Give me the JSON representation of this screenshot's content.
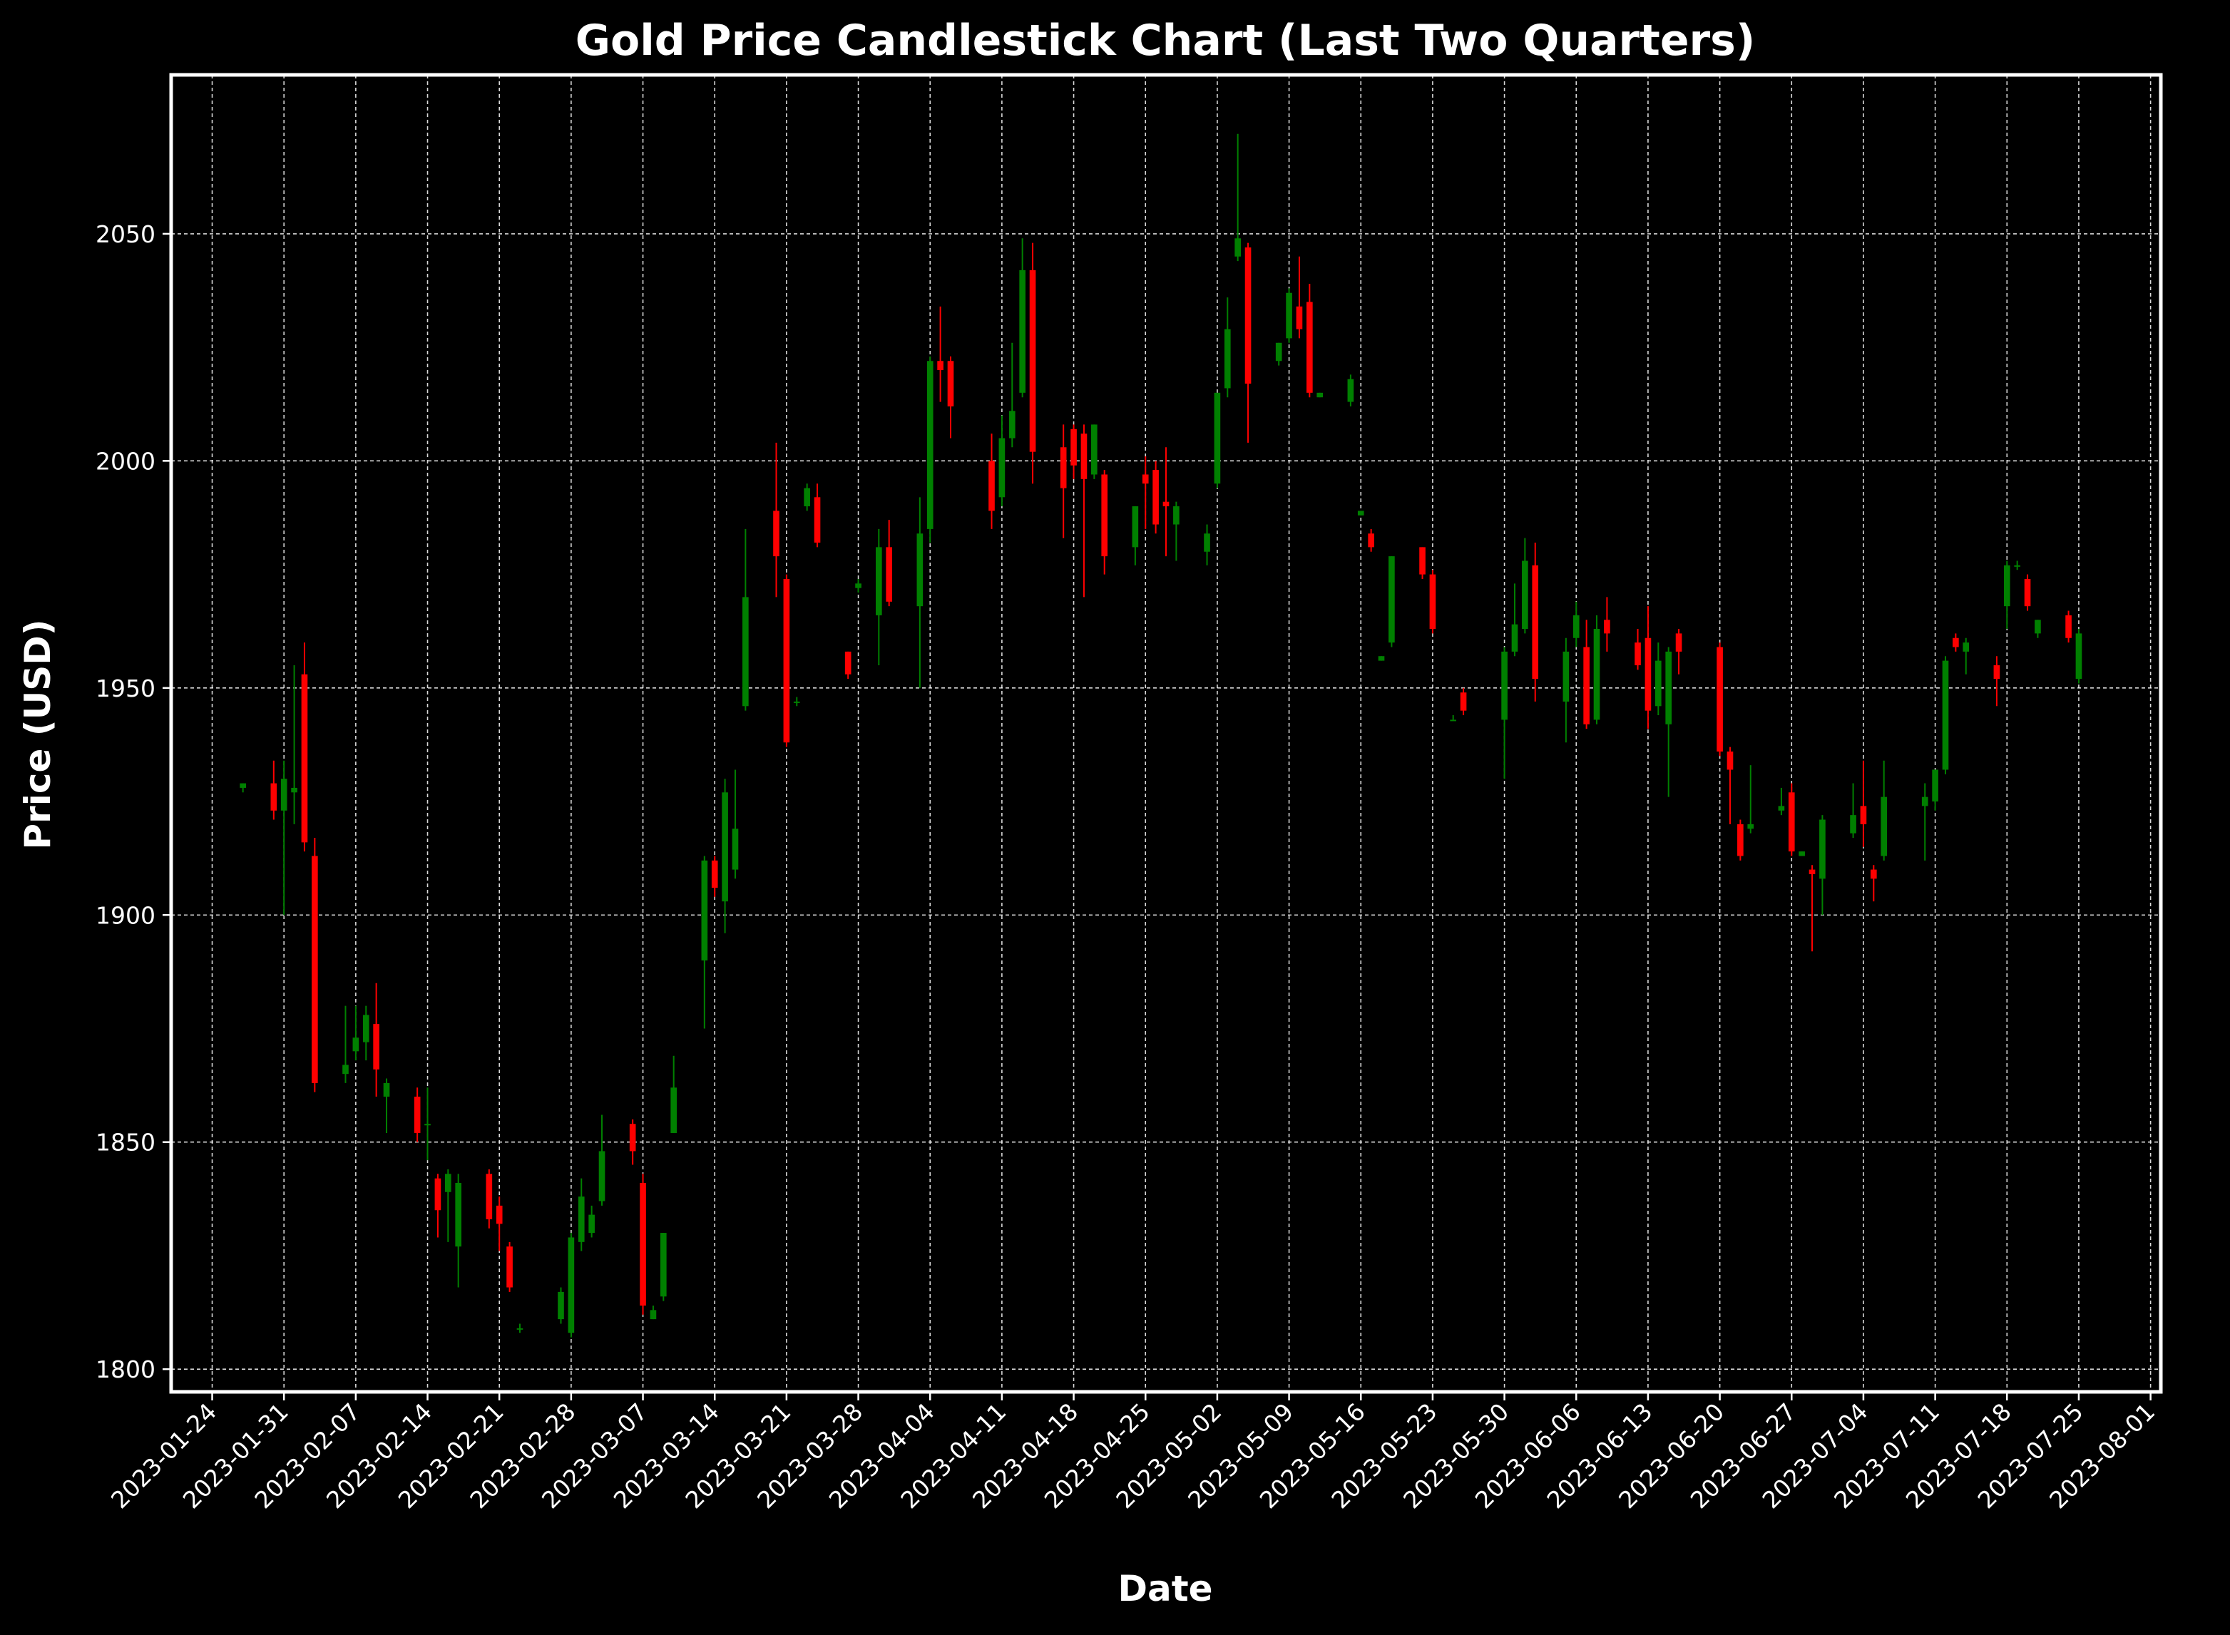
{
  "title": "Gold Price Candlestick Chart (Last Two Quarters)",
  "chart_data": {
    "type": "candlestick",
    "title": "Gold Price Candlestick Chart (Last Two Quarters)",
    "xlabel": "Date",
    "ylabel": "Price (USD)",
    "xlim": [
      "2023-01-20",
      "2023-08-02"
    ],
    "ylim": [
      1795,
      2085
    ],
    "x_ticks": [
      "2023-01-24",
      "2023-01-31",
      "2023-02-07",
      "2023-02-14",
      "2023-02-21",
      "2023-02-28",
      "2023-03-07",
      "2023-03-14",
      "2023-03-21",
      "2023-03-28",
      "2023-04-04",
      "2023-04-11",
      "2023-04-18",
      "2023-04-25",
      "2023-05-02",
      "2023-05-09",
      "2023-05-16",
      "2023-05-23",
      "2023-05-30",
      "2023-06-06",
      "2023-06-13",
      "2023-06-20",
      "2023-06-27",
      "2023-07-04",
      "2023-07-11",
      "2023-07-18",
      "2023-07-25",
      "2023-08-01"
    ],
    "y_ticks": [
      1800,
      1850,
      1900,
      1950,
      2000,
      2050
    ],
    "grid": true,
    "legend": "none",
    "colors": {
      "up": "#008000",
      "down": "#ff0000",
      "background": "#000000",
      "text": "#ffffff"
    },
    "candles": [
      {
        "date": "2023-01-27",
        "open": 1928,
        "high": 1929,
        "low": 1927,
        "close": 1929
      },
      {
        "date": "2023-01-30",
        "open": 1929,
        "high": 1934,
        "low": 1921,
        "close": 1923
      },
      {
        "date": "2023-01-31",
        "open": 1923,
        "high": 1934,
        "low": 1900,
        "close": 1930
      },
      {
        "date": "2023-02-01",
        "open": 1927,
        "high": 1955,
        "low": 1920,
        "close": 1928
      },
      {
        "date": "2023-02-02",
        "open": 1953,
        "high": 1960,
        "low": 1914,
        "close": 1916
      },
      {
        "date": "2023-02-03",
        "open": 1913,
        "high": 1917,
        "low": 1861,
        "close": 1863
      },
      {
        "date": "2023-02-06",
        "open": 1865,
        "high": 1880,
        "low": 1863,
        "close": 1867
      },
      {
        "date": "2023-02-07",
        "open": 1870,
        "high": 1880,
        "low": 1868,
        "close": 1873
      },
      {
        "date": "2023-02-08",
        "open": 1872,
        "high": 1880,
        "low": 1868,
        "close": 1878
      },
      {
        "date": "2023-02-09",
        "open": 1876,
        "high": 1885,
        "low": 1860,
        "close": 1866
      },
      {
        "date": "2023-02-10",
        "open": 1860,
        "high": 1864,
        "low": 1852,
        "close": 1863
      },
      {
        "date": "2023-02-13",
        "open": 1860,
        "high": 1862,
        "low": 1850,
        "close": 1852
      },
      {
        "date": "2023-02-14",
        "open": 1854,
        "high": 1862,
        "low": 1846,
        "close": 1854
      },
      {
        "date": "2023-02-15",
        "open": 1842,
        "high": 1843,
        "low": 1829,
        "close": 1835
      },
      {
        "date": "2023-02-16",
        "open": 1839,
        "high": 1844,
        "low": 1828,
        "close": 1843
      },
      {
        "date": "2023-02-17",
        "open": 1827,
        "high": 1843,
        "low": 1818,
        "close": 1841
      },
      {
        "date": "2023-02-20",
        "open": 1843,
        "high": 1844,
        "low": 1831,
        "close": 1833
      },
      {
        "date": "2023-02-21",
        "open": 1836,
        "high": 1838,
        "low": 1826,
        "close": 1832
      },
      {
        "date": "2023-02-22",
        "open": 1827,
        "high": 1828,
        "low": 1817,
        "close": 1818
      },
      {
        "date": "2023-02-23",
        "open": 1809,
        "high": 1810,
        "low": 1808,
        "close": 1809
      },
      {
        "date": "2023-02-27",
        "open": 1811,
        "high": 1818,
        "low": 1810,
        "close": 1817
      },
      {
        "date": "2023-02-28",
        "open": 1808,
        "high": 1830,
        "low": 1807,
        "close": 1829
      },
      {
        "date": "2023-03-01",
        "open": 1828,
        "high": 1842,
        "low": 1826,
        "close": 1838
      },
      {
        "date": "2023-03-02",
        "open": 1830,
        "high": 1836,
        "low": 1829,
        "close": 1834
      },
      {
        "date": "2023-03-03",
        "open": 1837,
        "high": 1856,
        "low": 1836,
        "close": 1848
      },
      {
        "date": "2023-03-06",
        "open": 1854,
        "high": 1855,
        "low": 1845,
        "close": 1848
      },
      {
        "date": "2023-03-07",
        "open": 1841,
        "high": 1843,
        "low": 1812,
        "close": 1814
      },
      {
        "date": "2023-03-08",
        "open": 1811,
        "high": 1814,
        "low": 1811,
        "close": 1813
      },
      {
        "date": "2023-03-09",
        "open": 1816,
        "high": 1830,
        "low": 1815,
        "close": 1830
      },
      {
        "date": "2023-03-10",
        "open": 1852,
        "high": 1869,
        "low": 1852,
        "close": 1862
      },
      {
        "date": "2023-03-13",
        "open": 1890,
        "high": 1913,
        "low": 1875,
        "close": 1912
      },
      {
        "date": "2023-03-14",
        "open": 1912,
        "high": 1913,
        "low": 1904,
        "close": 1906
      },
      {
        "date": "2023-03-15",
        "open": 1903,
        "high": 1930,
        "low": 1896,
        "close": 1927
      },
      {
        "date": "2023-03-16",
        "open": 1910,
        "high": 1932,
        "low": 1908,
        "close": 1919
      },
      {
        "date": "2023-03-17",
        "open": 1946,
        "high": 1985,
        "low": 1945,
        "close": 1970
      },
      {
        "date": "2023-03-20",
        "open": 1989,
        "high": 2004,
        "low": 1970,
        "close": 1979
      },
      {
        "date": "2023-03-21",
        "open": 1974,
        "high": 1975,
        "low": 1937,
        "close": 1938
      },
      {
        "date": "2023-03-22",
        "open": 1947,
        "high": 1948,
        "low": 1946,
        "close": 1947
      },
      {
        "date": "2023-03-23",
        "open": 1990,
        "high": 1995,
        "low": 1989,
        "close": 1994
      },
      {
        "date": "2023-03-24",
        "open": 1992,
        "high": 1995,
        "low": 1981,
        "close": 1982
      },
      {
        "date": "2023-03-27",
        "open": 1958,
        "high": 1958,
        "low": 1952,
        "close": 1953
      },
      {
        "date": "2023-03-28",
        "open": 1972,
        "high": 1974,
        "low": 1971,
        "close": 1973
      },
      {
        "date": "2023-03-30",
        "open": 1966,
        "high": 1985,
        "low": 1955,
        "close": 1981
      },
      {
        "date": "2023-03-31",
        "open": 1981,
        "high": 1987,
        "low": 1968,
        "close": 1969
      },
      {
        "date": "2023-04-03",
        "open": 1968,
        "high": 1992,
        "low": 1950,
        "close": 1984
      },
      {
        "date": "2023-04-04",
        "open": 1985,
        "high": 2023,
        "low": 1982,
        "close": 2022
      },
      {
        "date": "2023-04-05",
        "open": 2022,
        "high": 2034,
        "low": 2013,
        "close": 2020
      },
      {
        "date": "2023-04-06",
        "open": 2022,
        "high": 2023,
        "low": 2005,
        "close": 2012
      },
      {
        "date": "2023-04-10",
        "open": 2000,
        "high": 2006,
        "low": 1985,
        "close": 1989
      },
      {
        "date": "2023-04-11",
        "open": 1992,
        "high": 2010,
        "low": 1990,
        "close": 2005
      },
      {
        "date": "2023-04-12",
        "open": 2005,
        "high": 2026,
        "low": 2003,
        "close": 2011
      },
      {
        "date": "2023-04-13",
        "open": 2015,
        "high": 2049,
        "low": 2014,
        "close": 2042
      },
      {
        "date": "2023-04-14",
        "open": 2042,
        "high": 2048,
        "low": 1995,
        "close": 2002
      },
      {
        "date": "2023-04-17",
        "open": 2003,
        "high": 2008,
        "low": 1983,
        "close": 1994
      },
      {
        "date": "2023-04-18",
        "open": 2007,
        "high": 2008,
        "low": 1996,
        "close": 1999
      },
      {
        "date": "2023-04-19",
        "open": 2006,
        "high": 2008,
        "low": 1970,
        "close": 1996
      },
      {
        "date": "2023-04-20",
        "open": 1997,
        "high": 2008,
        "low": 1996,
        "close": 2008
      },
      {
        "date": "2023-04-21",
        "open": 1997,
        "high": 1998,
        "low": 1975,
        "close": 1979
      },
      {
        "date": "2023-04-24",
        "open": 1981,
        "high": 1990,
        "low": 1977,
        "close": 1990
      },
      {
        "date": "2023-04-25",
        "open": 1997,
        "high": 2001,
        "low": 1985,
        "close": 1995
      },
      {
        "date": "2023-04-26",
        "open": 1998,
        "high": 2000,
        "low": 1984,
        "close": 1986
      },
      {
        "date": "2023-04-27",
        "open": 1991,
        "high": 2003,
        "low": 1979,
        "close": 1990
      },
      {
        "date": "2023-04-28",
        "open": 1986,
        "high": 1991,
        "low": 1978,
        "close": 1990
      },
      {
        "date": "2023-05-01",
        "open": 1980,
        "high": 1986,
        "low": 1977,
        "close": 1984
      },
      {
        "date": "2023-05-02",
        "open": 1995,
        "high": 2015,
        "low": 1994,
        "close": 2015
      },
      {
        "date": "2023-05-03",
        "open": 2016,
        "high": 2036,
        "low": 2014,
        "close": 2029
      },
      {
        "date": "2023-05-04",
        "open": 2045,
        "high": 2072,
        "low": 2044,
        "close": 2049
      },
      {
        "date": "2023-05-05",
        "open": 2047,
        "high": 2048,
        "low": 2004,
        "close": 2017
      },
      {
        "date": "2023-05-08",
        "open": 2022,
        "high": 2026,
        "low": 2021,
        "close": 2026
      },
      {
        "date": "2023-05-09",
        "open": 2027,
        "high": 2038,
        "low": 2026,
        "close": 2037
      },
      {
        "date": "2023-05-10",
        "open": 2034,
        "high": 2045,
        "low": 2027,
        "close": 2029
      },
      {
        "date": "2023-05-11",
        "open": 2035,
        "high": 2039,
        "low": 2014,
        "close": 2015
      },
      {
        "date": "2023-05-12",
        "open": 2014,
        "high": 2015,
        "low": 2014,
        "close": 2015
      },
      {
        "date": "2023-05-15",
        "open": 2013,
        "high": 2019,
        "low": 2012,
        "close": 2018
      },
      {
        "date": "2023-05-16",
        "open": 1988,
        "high": 1989,
        "low": 1988,
        "close": 1989
      },
      {
        "date": "2023-05-17",
        "open": 1984,
        "high": 1985,
        "low": 1980,
        "close": 1981
      },
      {
        "date": "2023-05-18",
        "open": 1956,
        "high": 1957,
        "low": 1956,
        "close": 1957
      },
      {
        "date": "2023-05-19",
        "open": 1960,
        "high": 1979,
        "low": 1959,
        "close": 1979
      },
      {
        "date": "2023-05-22",
        "open": 1981,
        "high": 1981,
        "low": 1974,
        "close": 1975
      },
      {
        "date": "2023-05-23",
        "open": 1975,
        "high": 1976,
        "low": 1962,
        "close": 1963
      },
      {
        "date": "2023-05-25",
        "open": 1943,
        "high": 1944,
        "low": 1943,
        "close": 1943
      },
      {
        "date": "2023-05-26",
        "open": 1949,
        "high": 1950,
        "low": 1944,
        "close": 1945
      },
      {
        "date": "2023-05-30",
        "open": 1943,
        "high": 1959,
        "low": 1930,
        "close": 1958
      },
      {
        "date": "2023-05-31",
        "open": 1958,
        "high": 1973,
        "low": 1957,
        "close": 1964
      },
      {
        "date": "2023-06-01",
        "open": 1963,
        "high": 1983,
        "low": 1962,
        "close": 1978
      },
      {
        "date": "2023-06-02",
        "open": 1977,
        "high": 1982,
        "low": 1947,
        "close": 1952
      },
      {
        "date": "2023-06-05",
        "open": 1947,
        "high": 1961,
        "low": 1938,
        "close": 1958
      },
      {
        "date": "2023-06-06",
        "open": 1961,
        "high": 1969,
        "low": 1959,
        "close": 1966
      },
      {
        "date": "2023-06-07",
        "open": 1959,
        "high": 1965,
        "low": 1941,
        "close": 1942
      },
      {
        "date": "2023-06-08",
        "open": 1943,
        "high": 1966,
        "low": 1942,
        "close": 1963
      },
      {
        "date": "2023-06-09",
        "open": 1965,
        "high": 1970,
        "low": 1958,
        "close": 1962
      },
      {
        "date": "2023-06-12",
        "open": 1960,
        "high": 1963,
        "low": 1954,
        "close": 1955
      },
      {
        "date": "2023-06-13",
        "open": 1961,
        "high": 1968,
        "low": 1941,
        "close": 1945
      },
      {
        "date": "2023-06-14",
        "open": 1946,
        "high": 1960,
        "low": 1944,
        "close": 1956
      },
      {
        "date": "2023-06-15",
        "open": 1942,
        "high": 1959,
        "low": 1926,
        "close": 1958
      },
      {
        "date": "2023-06-16",
        "open": 1962,
        "high": 1963,
        "low": 1953,
        "close": 1958
      },
      {
        "date": "2023-06-20",
        "open": 1959,
        "high": 1960,
        "low": 1935,
        "close": 1936
      },
      {
        "date": "2023-06-21",
        "open": 1936,
        "high": 1937,
        "low": 1920,
        "close": 1932
      },
      {
        "date": "2023-06-22",
        "open": 1920,
        "high": 1921,
        "low": 1912,
        "close": 1913
      },
      {
        "date": "2023-06-23",
        "open": 1919,
        "high": 1933,
        "low": 1918,
        "close": 1920
      },
      {
        "date": "2023-06-26",
        "open": 1923,
        "high": 1928,
        "low": 1922,
        "close": 1924
      },
      {
        "date": "2023-06-27",
        "open": 1927,
        "high": 1929,
        "low": 1913,
        "close": 1914
      },
      {
        "date": "2023-06-28",
        "open": 1913,
        "high": 1914,
        "low": 1913,
        "close": 1914
      },
      {
        "date": "2023-06-29",
        "open": 1910,
        "high": 1911,
        "low": 1892,
        "close": 1909
      },
      {
        "date": "2023-06-30",
        "open": 1908,
        "high": 1922,
        "low": 1900,
        "close": 1921
      },
      {
        "date": "2023-07-03",
        "open": 1918,
        "high": 1929,
        "low": 1917,
        "close": 1922
      },
      {
        "date": "2023-07-04",
        "open": 1924,
        "high": 1934,
        "low": 1915,
        "close": 1920
      },
      {
        "date": "2023-07-05",
        "open": 1910,
        "high": 1911,
        "low": 1903,
        "close": 1908
      },
      {
        "date": "2023-07-06",
        "open": 1913,
        "high": 1934,
        "low": 1912,
        "close": 1926
      },
      {
        "date": "2023-07-10",
        "open": 1924,
        "high": 1929,
        "low": 1912,
        "close": 1926
      },
      {
        "date": "2023-07-11",
        "open": 1925,
        "high": 1932,
        "low": 1923,
        "close": 1932
      },
      {
        "date": "2023-07-12",
        "open": 1932,
        "high": 1957,
        "low": 1931,
        "close": 1956
      },
      {
        "date": "2023-07-13",
        "open": 1961,
        "high": 1962,
        "low": 1958,
        "close": 1959
      },
      {
        "date": "2023-07-14",
        "open": 1958,
        "high": 1961,
        "low": 1953,
        "close": 1960
      },
      {
        "date": "2023-07-17",
        "open": 1955,
        "high": 1957,
        "low": 1946,
        "close": 1952
      },
      {
        "date": "2023-07-18",
        "open": 1968,
        "high": 1978,
        "low": 1963,
        "close": 1977
      },
      {
        "date": "2023-07-19",
        "open": 1977,
        "high": 1978,
        "low": 1976,
        "close": 1977
      },
      {
        "date": "2023-07-20",
        "open": 1974,
        "high": 1975,
        "low": 1967,
        "close": 1968
      },
      {
        "date": "2023-07-21",
        "open": 1962,
        "high": 1965,
        "low": 1961,
        "close": 1965
      },
      {
        "date": "2023-07-24",
        "open": 1966,
        "high": 1967,
        "low": 1960,
        "close": 1961
      },
      {
        "date": "2023-07-25",
        "open": 1952,
        "high": 1963,
        "low": 1951,
        "close": 1962
      }
    ]
  }
}
